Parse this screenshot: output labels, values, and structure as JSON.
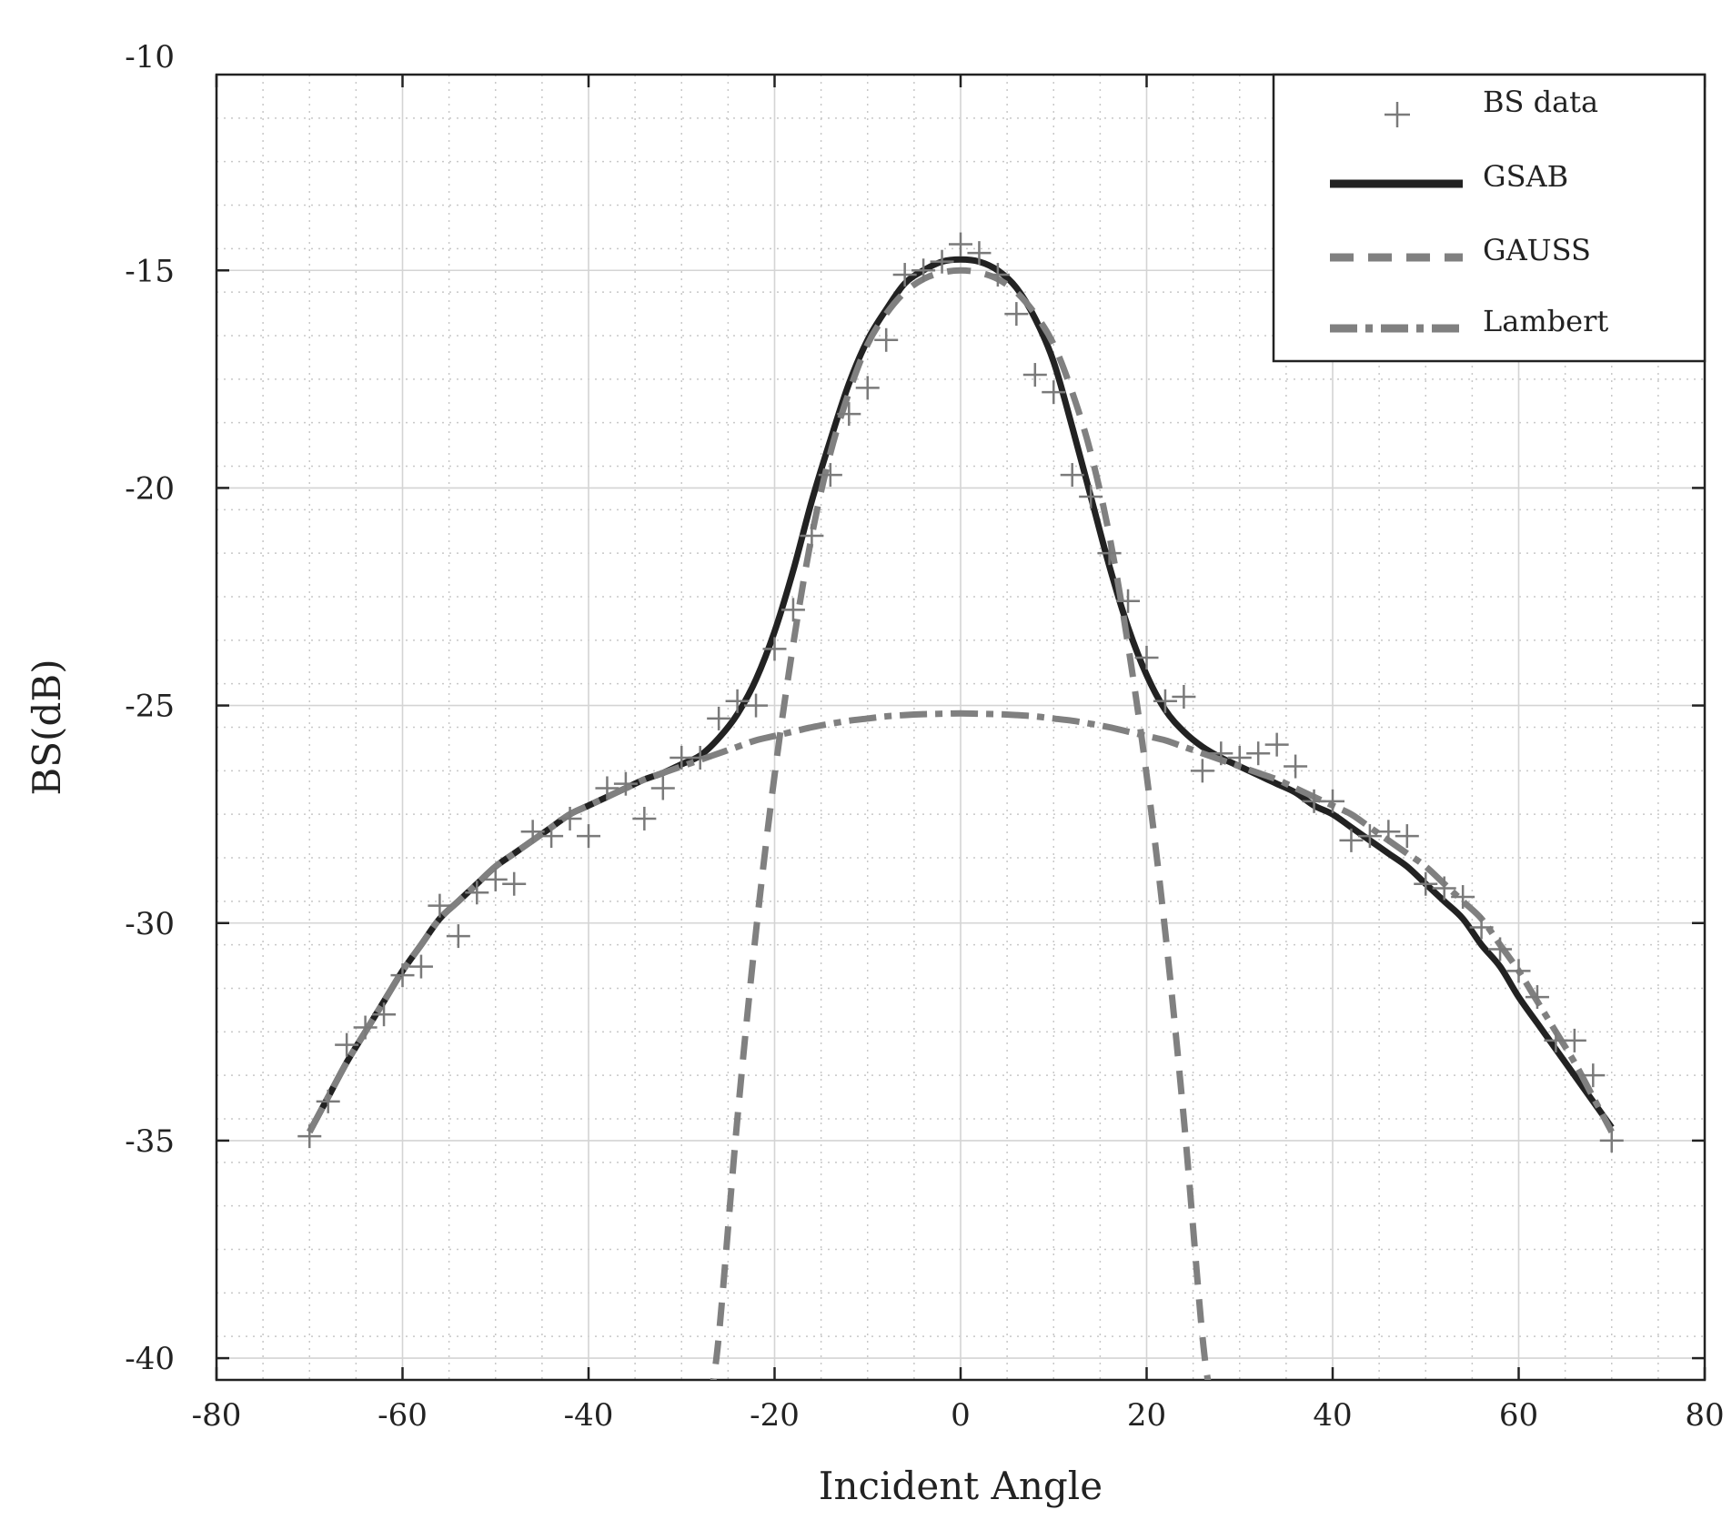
{
  "chart_data": {
    "type": "line",
    "title": "",
    "xlabel": "Incident Angle",
    "ylabel": "BS(dB)",
    "xlim": [
      -80,
      80
    ],
    "ylim": [
      -40.5,
      -10.5
    ],
    "x_ticks": [
      -80,
      -60,
      -40,
      -20,
      0,
      20,
      40,
      60,
      80
    ],
    "y_ticks": [
      -40,
      -35,
      -30,
      -25,
      -20,
      -15,
      -10
    ],
    "x_tick_labels": [
      "-80",
      "-60",
      "-40",
      "-20",
      "0",
      "20",
      "40",
      "60",
      "80"
    ],
    "y_tick_labels": [
      "-40",
      "-35",
      "-30",
      "-25",
      "-20",
      "-15",
      "-10"
    ],
    "grid": true,
    "legend_position": "top-right",
    "colors": {
      "bs_data": "#7a7a7a",
      "gsab": "#222222",
      "gauss": "#808080",
      "lambert": "#808080"
    },
    "series": [
      {
        "name": "BS data",
        "kind": "scatter",
        "marker": "plus",
        "points": [
          [
            -70,
            -34.9
          ],
          [
            -68,
            -34.1
          ],
          [
            -66,
            -32.8
          ],
          [
            -64,
            -32.4
          ],
          [
            -62,
            -32.1
          ],
          [
            -60,
            -31.2
          ],
          [
            -58,
            -31.0
          ],
          [
            -56,
            -29.6
          ],
          [
            -54,
            -30.3
          ],
          [
            -52,
            -29.3
          ],
          [
            -50,
            -29.0
          ],
          [
            -48,
            -29.1
          ],
          [
            -46,
            -27.9
          ],
          [
            -44,
            -28.0
          ],
          [
            -42,
            -27.6
          ],
          [
            -40,
            -28.0
          ],
          [
            -38,
            -26.9
          ],
          [
            -36,
            -26.8
          ],
          [
            -34,
            -27.6
          ],
          [
            -32,
            -26.9
          ],
          [
            -30,
            -26.2
          ],
          [
            -28,
            -26.2
          ],
          [
            -26,
            -25.3
          ],
          [
            -24,
            -24.9
          ],
          [
            -22,
            -25.0
          ],
          [
            -20,
            -23.7
          ],
          [
            -18,
            -22.8
          ],
          [
            -16,
            -21.1
          ],
          [
            -14,
            -19.7
          ],
          [
            -12,
            -18.3
          ],
          [
            -10,
            -17.7
          ],
          [
            -8,
            -16.6
          ],
          [
            -6,
            -15.1
          ],
          [
            -4,
            -15.0
          ],
          [
            -2,
            -14.8
          ],
          [
            0,
            -14.4
          ],
          [
            2,
            -14.6
          ],
          [
            4,
            -15.1
          ],
          [
            6,
            -16.0
          ],
          [
            8,
            -17.4
          ],
          [
            10,
            -17.8
          ],
          [
            12,
            -19.7
          ],
          [
            14,
            -20.2
          ],
          [
            16,
            -21.5
          ],
          [
            18,
            -22.6
          ],
          [
            20,
            -23.9
          ],
          [
            22,
            -24.9
          ],
          [
            24,
            -24.8
          ],
          [
            26,
            -26.5
          ],
          [
            28,
            -26.1
          ],
          [
            30,
            -26.2
          ],
          [
            32,
            -26.1
          ],
          [
            34,
            -25.9
          ],
          [
            36,
            -26.4
          ],
          [
            38,
            -27.2
          ],
          [
            40,
            -27.2
          ],
          [
            42,
            -28.1
          ],
          [
            44,
            -28.0
          ],
          [
            46,
            -27.9
          ],
          [
            48,
            -28.0
          ],
          [
            50,
            -29.1
          ],
          [
            52,
            -29.2
          ],
          [
            54,
            -29.4
          ],
          [
            56,
            -30.1
          ],
          [
            58,
            -30.6
          ],
          [
            60,
            -31.1
          ],
          [
            62,
            -31.7
          ],
          [
            64,
            -32.7
          ],
          [
            66,
            -32.7
          ],
          [
            68,
            -33.5
          ],
          [
            70,
            -35.0
          ]
        ]
      },
      {
        "name": "GSAB",
        "kind": "line",
        "points": [
          [
            -70,
            -34.8
          ],
          [
            -68,
            -34.0
          ],
          [
            -66,
            -33.2
          ],
          [
            -64,
            -32.5
          ],
          [
            -62,
            -31.8
          ],
          [
            -60,
            -31.1
          ],
          [
            -58,
            -30.5
          ],
          [
            -56,
            -29.9
          ],
          [
            -54,
            -29.5
          ],
          [
            -52,
            -29.1
          ],
          [
            -50,
            -28.7
          ],
          [
            -48,
            -28.4
          ],
          [
            -46,
            -28.1
          ],
          [
            -44,
            -27.8
          ],
          [
            -42,
            -27.5
          ],
          [
            -40,
            -27.3
          ],
          [
            -38,
            -27.1
          ],
          [
            -36,
            -26.9
          ],
          [
            -34,
            -26.7
          ],
          [
            -32,
            -26.55
          ],
          [
            -30,
            -26.35
          ],
          [
            -28,
            -26.15
          ],
          [
            -26,
            -25.75
          ],
          [
            -24,
            -25.2
          ],
          [
            -22,
            -24.4
          ],
          [
            -20,
            -23.3
          ],
          [
            -18,
            -21.9
          ],
          [
            -16,
            -20.3
          ],
          [
            -14,
            -18.9
          ],
          [
            -12,
            -17.6
          ],
          [
            -10,
            -16.6
          ],
          [
            -8,
            -15.9
          ],
          [
            -6,
            -15.3
          ],
          [
            -4,
            -15.0
          ],
          [
            -2,
            -14.8
          ],
          [
            0,
            -14.75
          ],
          [
            2,
            -14.8
          ],
          [
            4,
            -15.0
          ],
          [
            6,
            -15.4
          ],
          [
            8,
            -16.1
          ],
          [
            10,
            -17.1
          ],
          [
            12,
            -18.6
          ],
          [
            14,
            -20.2
          ],
          [
            16,
            -21.8
          ],
          [
            18,
            -23.2
          ],
          [
            20,
            -24.3
          ],
          [
            22,
            -25.1
          ],
          [
            24,
            -25.6
          ],
          [
            26,
            -25.95
          ],
          [
            28,
            -26.2
          ],
          [
            30,
            -26.4
          ],
          [
            32,
            -26.6
          ],
          [
            34,
            -26.8
          ],
          [
            36,
            -27.0
          ],
          [
            38,
            -27.3
          ],
          [
            40,
            -27.5
          ],
          [
            42,
            -27.8
          ],
          [
            44,
            -28.1
          ],
          [
            46,
            -28.4
          ],
          [
            48,
            -28.7
          ],
          [
            50,
            -29.1
          ],
          [
            52,
            -29.5
          ],
          [
            54,
            -29.9
          ],
          [
            56,
            -30.5
          ],
          [
            58,
            -31.0
          ],
          [
            60,
            -31.7
          ],
          [
            62,
            -32.3
          ],
          [
            64,
            -32.9
          ],
          [
            66,
            -33.5
          ],
          [
            68,
            -34.1
          ],
          [
            70,
            -34.7
          ]
        ]
      },
      {
        "name": "GAUSS",
        "kind": "line",
        "points": [
          [
            -27,
            -41.0
          ],
          [
            -26,
            -39.5
          ],
          [
            -24,
            -34.5
          ],
          [
            -22,
            -30.2
          ],
          [
            -20,
            -26.6
          ],
          [
            -18,
            -23.6
          ],
          [
            -16,
            -21.1
          ],
          [
            -14,
            -19.2
          ],
          [
            -12,
            -17.8
          ],
          [
            -10,
            -16.7
          ],
          [
            -8,
            -16.0
          ],
          [
            -6,
            -15.5
          ],
          [
            -4,
            -15.2
          ],
          [
            -2,
            -15.05
          ],
          [
            0,
            -15.0
          ],
          [
            2,
            -15.05
          ],
          [
            4,
            -15.2
          ],
          [
            6,
            -15.5
          ],
          [
            8,
            -16.0
          ],
          [
            10,
            -16.7
          ],
          [
            12,
            -17.8
          ],
          [
            14,
            -19.2
          ],
          [
            16,
            -21.1
          ],
          [
            18,
            -23.6
          ],
          [
            20,
            -26.6
          ],
          [
            22,
            -30.2
          ],
          [
            24,
            -34.5
          ],
          [
            26,
            -39.5
          ],
          [
            27,
            -41.0
          ]
        ]
      },
      {
        "name": "Lambert",
        "kind": "line",
        "points": [
          [
            -70,
            -34.8
          ],
          [
            -68,
            -34.0
          ],
          [
            -66,
            -33.2
          ],
          [
            -64,
            -32.5
          ],
          [
            -62,
            -31.8
          ],
          [
            -60,
            -31.1
          ],
          [
            -58,
            -30.5
          ],
          [
            -56,
            -29.9
          ],
          [
            -54,
            -29.5
          ],
          [
            -52,
            -29.1
          ],
          [
            -50,
            -28.7
          ],
          [
            -48,
            -28.4
          ],
          [
            -46,
            -28.1
          ],
          [
            -44,
            -27.8
          ],
          [
            -42,
            -27.5
          ],
          [
            -40,
            -27.3
          ],
          [
            -38,
            -27.1
          ],
          [
            -36,
            -26.9
          ],
          [
            -34,
            -26.7
          ],
          [
            -32,
            -26.55
          ],
          [
            -30,
            -26.4
          ],
          [
            -28,
            -26.25
          ],
          [
            -26,
            -26.1
          ],
          [
            -24,
            -25.95
          ],
          [
            -22,
            -25.8
          ],
          [
            -20,
            -25.7
          ],
          [
            -18,
            -25.6
          ],
          [
            -16,
            -25.5
          ],
          [
            -14,
            -25.42
          ],
          [
            -12,
            -25.35
          ],
          [
            -10,
            -25.3
          ],
          [
            -8,
            -25.25
          ],
          [
            -6,
            -25.22
          ],
          [
            -4,
            -25.2
          ],
          [
            -2,
            -25.19
          ],
          [
            0,
            -25.18
          ],
          [
            2,
            -25.19
          ],
          [
            4,
            -25.2
          ],
          [
            6,
            -25.22
          ],
          [
            8,
            -25.25
          ],
          [
            10,
            -25.3
          ],
          [
            12,
            -25.35
          ],
          [
            14,
            -25.42
          ],
          [
            16,
            -25.5
          ],
          [
            18,
            -25.6
          ],
          [
            20,
            -25.7
          ],
          [
            22,
            -25.8
          ],
          [
            24,
            -25.95
          ],
          [
            26,
            -26.1
          ],
          [
            28,
            -26.25
          ],
          [
            30,
            -26.4
          ],
          [
            32,
            -26.55
          ],
          [
            34,
            -26.7
          ],
          [
            36,
            -26.9
          ],
          [
            38,
            -27.1
          ],
          [
            40,
            -27.3
          ],
          [
            42,
            -27.5
          ],
          [
            44,
            -27.8
          ],
          [
            46,
            -28.1
          ],
          [
            48,
            -28.4
          ],
          [
            50,
            -28.7
          ],
          [
            52,
            -29.1
          ],
          [
            54,
            -29.5
          ],
          [
            56,
            -29.9
          ],
          [
            58,
            -30.5
          ],
          [
            60,
            -31.1
          ],
          [
            62,
            -31.8
          ],
          [
            64,
            -32.5
          ],
          [
            66,
            -33.2
          ],
          [
            68,
            -34.0
          ],
          [
            70,
            -34.8
          ]
        ]
      }
    ]
  }
}
